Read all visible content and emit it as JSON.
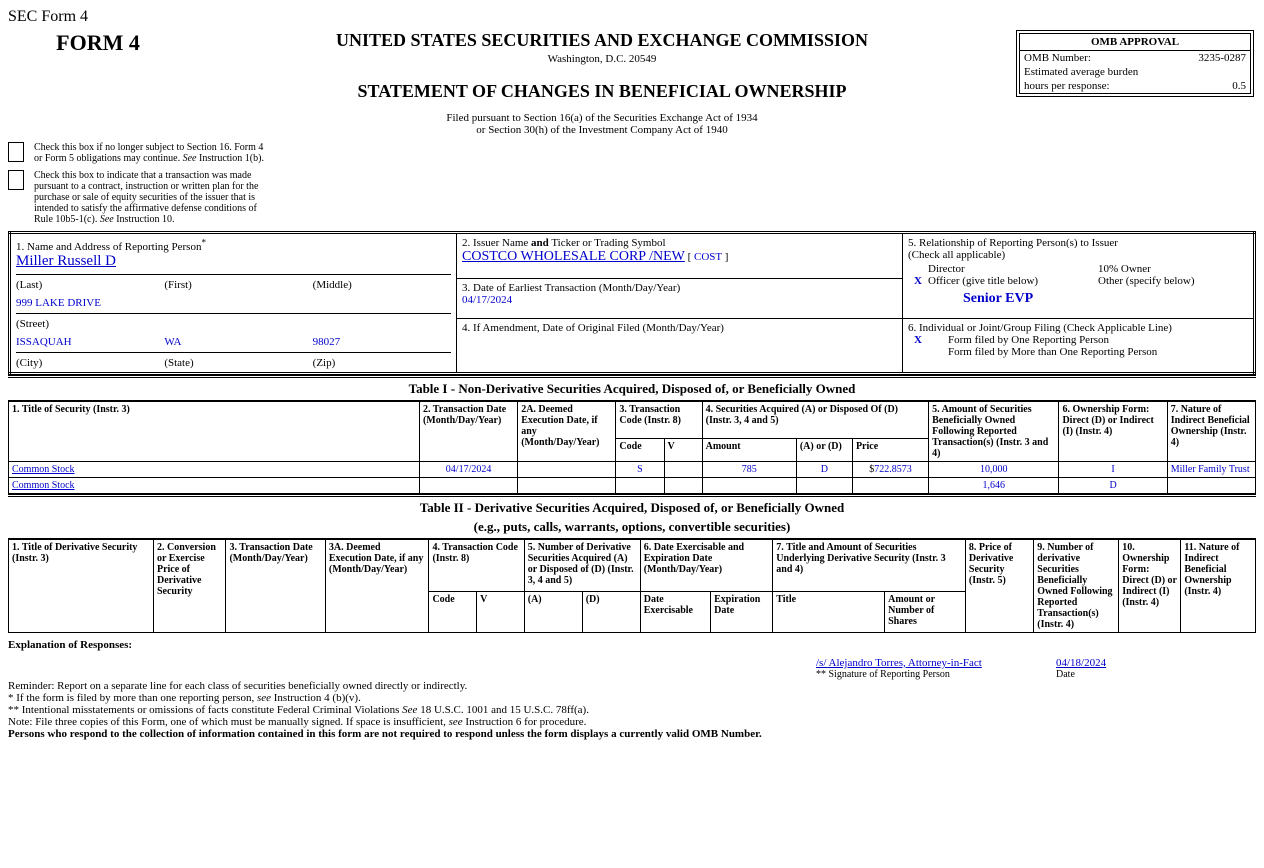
{
  "page_title": "SEC Form 4",
  "form_title": "FORM 4",
  "sec_title": "UNITED STATES SECURITIES AND EXCHANGE COMMISSION",
  "sec_addr": "Washington, D.C. 20549",
  "statement_title": "STATEMENT OF CHANGES IN BENEFICIAL OWNERSHIP",
  "filed1": "Filed pursuant to Section 16(a) of the Securities Exchange Act of 1934",
  "filed2": "or Section 30(h) of the Investment Company Act of 1940",
  "omb": {
    "title": "OMB APPROVAL",
    "number_label": "OMB Number:",
    "number": "3235-0287",
    "burden_label": "Estimated average burden",
    "hours_label": "hours per response:",
    "hours": "0.5"
  },
  "check1": {
    "pre": "Check this box if no longer subject to Section 16. Form 4 or Form 5 obligations may continue. ",
    "italic": "See",
    "post": " Instruction 1(b)."
  },
  "check2": {
    "pre": "Check this box to indicate that a transaction was made pursuant to a contract, instruction or written plan for the purchase or sale of equity securities of the issuer that is intended to satisfy the affirmative defense conditions of Rule 10b5-1(c). ",
    "italic": "See",
    "post": " Instruction 10."
  },
  "box1": {
    "label": "1. Name and Address of Reporting Person",
    "star": "*",
    "name": "Miller Russell D",
    "last": "(Last)",
    "first": "(First)",
    "middle": "(Middle)",
    "street_val": "999 LAKE DRIVE",
    "street": "(Street)",
    "city_val": "ISSAQUAH",
    "state_val": "WA",
    "zip_val": "98027",
    "city": "(City)",
    "state": "(State)",
    "zip": "(Zip)"
  },
  "box2": {
    "label_pre": "2. Issuer Name ",
    "label_bold": "and",
    "label_post": " Ticker or Trading Symbol",
    "issuer": "COSTCO WHOLESALE CORP /NEW",
    "br_open": " [ ",
    "ticker": "COST",
    "br_close": " ]"
  },
  "box3": {
    "label": "3. Date of Earliest Transaction (Month/Day/Year)",
    "value": "04/17/2024"
  },
  "box4": {
    "label": "4. If Amendment, Date of Original Filed (Month/Day/Year)"
  },
  "box5": {
    "label": "5. Relationship of Reporting Person(s) to Issuer",
    "sub": "(Check all applicable)",
    "director": "Director",
    "owner10": "10% Owner",
    "officer": "Officer (give title below)",
    "other": "Other (specify below)",
    "officer_x": "X",
    "title": "Senior EVP"
  },
  "box6": {
    "label": "6. Individual or Joint/Group Filing (Check Applicable Line)",
    "x": "X",
    "line1": "Form filed by One Reporting Person",
    "line2": "Form filed by More than One Reporting Person"
  },
  "table1": {
    "title": "Table I - Non-Derivative Securities Acquired, Disposed of, or Beneficially Owned",
    "headers": {
      "c1": "1. Title of Security (Instr. 3)",
      "c2": "2. Transaction Date (Month/Day/Year)",
      "c2a": "2A. Deemed Execution Date, if any (Month/Day/Year)",
      "c3": "3. Transaction Code (Instr. 8)",
      "c4": "4. Securities Acquired (A) or Disposed Of (D) (Instr. 3, 4 and 5)",
      "c5": "5. Amount of Securities Beneficially Owned Following Reported Transaction(s) (Instr. 3 and 4)",
      "c6": "6. Ownership Form: Direct (D) or Indirect (I) (Instr. 4)",
      "c7": "7. Nature of Indirect Beneficial Ownership (Instr. 4)",
      "code": "Code",
      "v": "V",
      "amount": "Amount",
      "ad": "(A) or (D)",
      "price": "Price"
    },
    "rows": [
      {
        "title": "Common Stock",
        "date": "04/17/2024",
        "deemed": "",
        "code": "S",
        "v": "",
        "amount": "785",
        "ad": "D",
        "price_pre": "$",
        "price": "722.8573",
        "owned": "10,000",
        "form": "I",
        "nature": "Miller Family Trust"
      },
      {
        "title": "Common Stock",
        "date": "",
        "deemed": "",
        "code": "",
        "v": "",
        "amount": "",
        "ad": "",
        "price_pre": "",
        "price": "",
        "owned": "1,646",
        "form": "D",
        "nature": ""
      }
    ]
  },
  "table2": {
    "title": "Table II - Derivative Securities Acquired, Disposed of, or Beneficially Owned",
    "subtitle": "(e.g., puts, calls, warrants, options, convertible securities)",
    "headers": {
      "c1": "1. Title of Derivative Security (Instr. 3)",
      "c2": "2. Conversion or Exercise Price of Derivative Security",
      "c3": "3. Transaction Date (Month/Day/Year)",
      "c3a": "3A. Deemed Execution Date, if any (Month/Day/Year)",
      "c4": "4. Transaction Code (Instr. 8)",
      "c5": "5. Number of Derivative Securities Acquired (A) or Disposed of (D) (Instr. 3, 4 and 5)",
      "c6": "6. Date Exercisable and Expiration Date (Month/Day/Year)",
      "c7": "7. Title and Amount of Securities Underlying Derivative Security (Instr. 3 and 4)",
      "c8": "8. Price of Derivative Security (Instr. 5)",
      "c9": "9. Number of derivative Securities Beneficially Owned Following Reported Transaction(s) (Instr. 4)",
      "c10": "10. Ownership Form: Direct (D) or Indirect (I) (Instr. 4)",
      "c11": "11. Nature of Indirect Beneficial Ownership (Instr. 4)",
      "code": "Code",
      "v": "V",
      "a": "(A)",
      "d": "(D)",
      "date_ex": "Date Exercisable",
      "exp": "Expiration Date",
      "utitle": "Title",
      "ushares": "Amount or Number of Shares"
    }
  },
  "explanation_label": "Explanation of Responses:",
  "signature": {
    "sig": "/s/ Alejandro Torres, Attorney-in-Fact",
    "date": "04/18/2024",
    "sig_label": "** Signature of Reporting Person",
    "date_label": "Date"
  },
  "footer": {
    "reminder": "Reminder: Report on a separate line for each class of securities beneficially owned directly or indirectly.",
    "star_pre": "* If the form is filed by more than one reporting person, ",
    "star_it": "see",
    "star_post": " Instruction 4 (b)(v).",
    "dstar_pre": "** Intentional misstatements or omissions of facts constitute Federal Criminal Violations ",
    "dstar_it": "See",
    "dstar_post": " 18 U.S.C. 1001 and 15 U.S.C. 78ff(a).",
    "note_pre": "Note: File three copies of this Form, one of which must be manually signed. If space is insufficient, ",
    "note_it": "see",
    "note_post": " Instruction 6 for procedure.",
    "persons": "Persons who respond to the collection of information contained in this form are not required to respond unless the form displays a currently valid OMB Number."
  }
}
